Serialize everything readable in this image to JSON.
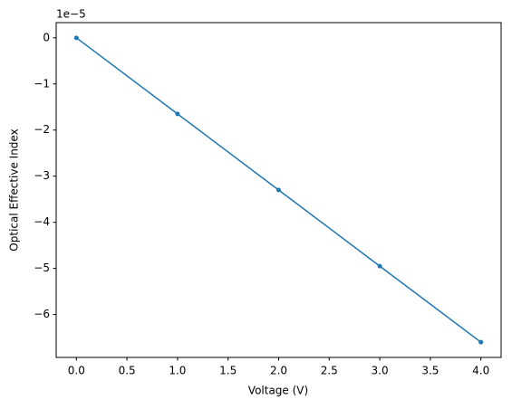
{
  "chart_data": {
    "type": "line",
    "x_label": "Voltage (V)",
    "y_label": "Optical Effective Index",
    "y_offset_label": "1e−5",
    "x": [
      0,
      1,
      2,
      3,
      4
    ],
    "series": [
      {
        "color": "#1f77b4",
        "values": [
          0,
          -1.65e-05,
          -3.3e-05,
          -4.95e-05,
          -6.6e-05
        ]
      }
    ],
    "xlim": [
      -0.2,
      4.2
    ],
    "ylim": [
      -6.93e-05,
      3.3e-06
    ],
    "xticks": [
      {
        "value": 0,
        "label": "0.0"
      },
      {
        "value": 0.5,
        "label": "0.5"
      },
      {
        "value": 1,
        "label": "1.0"
      },
      {
        "value": 1.5,
        "label": "1.5"
      },
      {
        "value": 2,
        "label": "2.0"
      },
      {
        "value": 2.5,
        "label": "2.5"
      },
      {
        "value": 3,
        "label": "3.0"
      },
      {
        "value": 3.5,
        "label": "3.5"
      },
      {
        "value": 4,
        "label": "4.0"
      }
    ],
    "yticks": [
      {
        "value": 0,
        "label": "0"
      },
      {
        "value": -1e-05,
        "label": "−1"
      },
      {
        "value": -2e-05,
        "label": "−2"
      },
      {
        "value": -3e-05,
        "label": "−3"
      },
      {
        "value": -4e-05,
        "label": "−4"
      },
      {
        "value": -5e-05,
        "label": "−5"
      },
      {
        "value": -6e-05,
        "label": "−6"
      }
    ],
    "grid": false
  }
}
